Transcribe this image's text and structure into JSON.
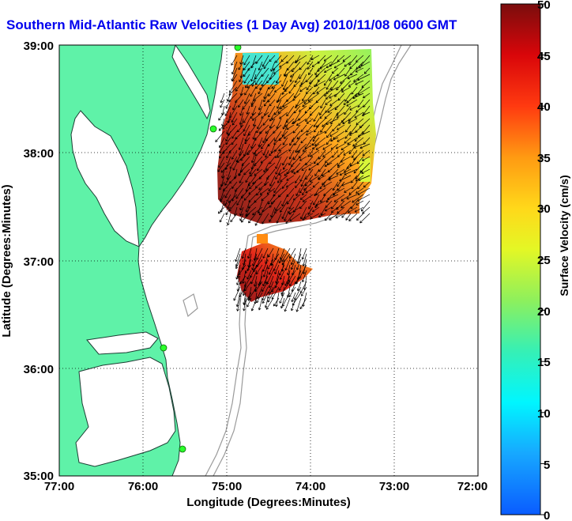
{
  "title": "Southern Mid-Atlantic Raw Velocities (1 Day Avg) 2010/11/08 0600 GMT",
  "map": {
    "xlabel": "Longitude (Degrees:Minutes)",
    "ylabel": "Latitude (Degrees:Minutes)",
    "x_ticks": [
      "77:00",
      "76:00",
      "75:00",
      "74:00",
      "73:00",
      "72:00"
    ],
    "y_ticks": [
      "39:00",
      "38:00",
      "37:00",
      "36:00",
      "35:00"
    ],
    "x_range_deg_w": [
      77,
      72
    ],
    "y_range_deg_n": [
      35,
      39
    ],
    "grid": "dotted",
    "land_color": "#5ff2a8",
    "ocean_color": "#ffffff",
    "coast_color": "#1c3f34",
    "bathymetry_color": "#9a9a9a",
    "station_color": "#2bff2b"
  },
  "colorbar": {
    "label": "Surface Velocity (cm/s)",
    "ticks": [
      "0",
      "5",
      "10",
      "15",
      "20",
      "25",
      "30",
      "35",
      "40",
      "45",
      "50"
    ],
    "range": [
      0,
      50
    ],
    "units": "cm/s"
  }
}
